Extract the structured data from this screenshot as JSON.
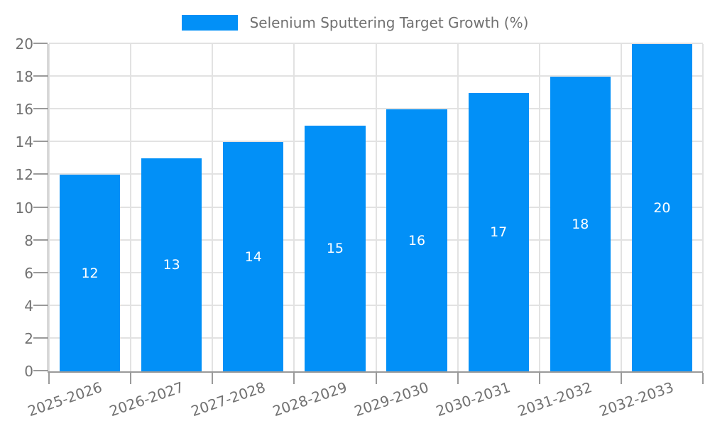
{
  "chart_data": {
    "type": "bar",
    "title": "Selenium Sputtering Target Growth (%)",
    "categories": [
      "2025-2026",
      "2026-2027",
      "2027-2028",
      "2028-2029",
      "2029-2030",
      "2030-2031",
      "2031-2032",
      "2032-2033"
    ],
    "values": [
      12,
      13,
      14,
      15,
      16,
      17,
      18,
      20
    ],
    "xlabel": "",
    "ylabel": "",
    "ylim": [
      0,
      20
    ],
    "ytick_step": 2,
    "ytick_labels": [
      "0",
      "2",
      "4",
      "6",
      "8",
      "10",
      "12",
      "14",
      "16",
      "18",
      "20"
    ],
    "bar_value_labels": [
      "12",
      "13",
      "14",
      "15",
      "16",
      "17",
      "18",
      "20"
    ],
    "grid": true,
    "legend_position": "top-center",
    "x_label_rotation_deg": -19
  },
  "colors": {
    "bar": "#0290f7",
    "grid": "#e2e2e2",
    "axis": "#9a9a9a",
    "text": "#717171",
    "background": "#ffffff",
    "value_label": "#ffffff"
  }
}
